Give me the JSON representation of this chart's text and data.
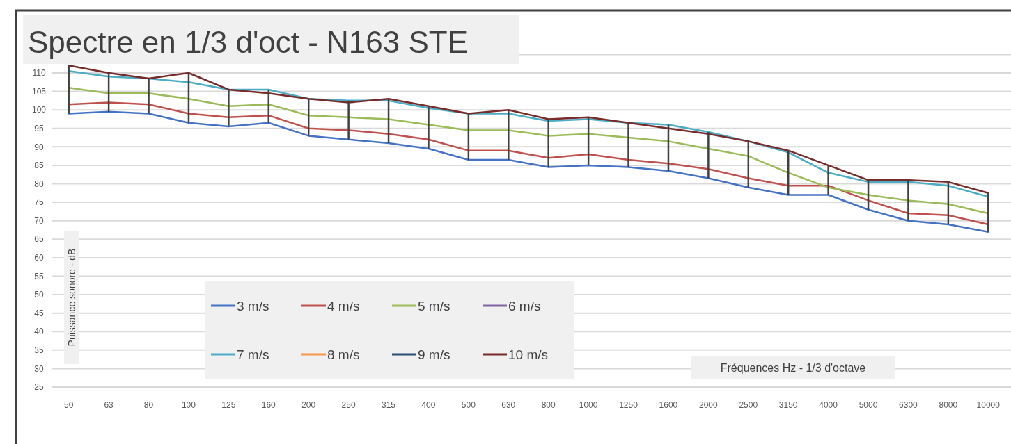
{
  "chart_data": {
    "type": "line",
    "title": "Spectre en 1/3 d'oct - N163 STE",
    "xlabel": "Fréquences Hz - 1/3 d'octave",
    "ylabel": "Puissance sonore - dB",
    "categories": [
      "50",
      "63",
      "80",
      "100",
      "125",
      "160",
      "200",
      "250",
      "315",
      "400",
      "500",
      "630",
      "800",
      "1000",
      "1250",
      "1600",
      "2000",
      "2500",
      "3150",
      "4000",
      "5000",
      "6300",
      "8000",
      "10000"
    ],
    "series": [
      {
        "name": "3 m/s",
        "color": "#4472c4",
        "values": [
          99,
          99.5,
          99,
          96.5,
          95.5,
          96.5,
          93,
          92,
          91,
          89.5,
          86.5,
          86.5,
          84.5,
          85,
          84.5,
          83.5,
          81.5,
          79,
          77,
          77,
          73,
          70,
          69,
          67
        ],
        "errors": [
          [
            99,
            112
          ],
          [
            99.5,
            110
          ],
          [
            99,
            108.5
          ],
          [
            96.5,
            110
          ],
          [
            95.5,
            105.5
          ],
          [
            96.5,
            105.5
          ],
          [
            93,
            103
          ],
          [
            92,
            102.5
          ],
          [
            91,
            103
          ],
          [
            89.5,
            101
          ],
          [
            86.5,
            99
          ],
          [
            86.5,
            100
          ],
          [
            84.5,
            97.5
          ],
          [
            85,
            98
          ],
          [
            84.5,
            96.5
          ],
          [
            83.5,
            96
          ],
          [
            81.5,
            94
          ],
          [
            79,
            91.5
          ],
          [
            77,
            89
          ],
          [
            77,
            85
          ],
          [
            73,
            81
          ],
          [
            70,
            81
          ],
          [
            69,
            80.5
          ],
          [
            67,
            77.5
          ]
        ]
      },
      {
        "name": "4 m/s",
        "color": "#c0504d",
        "values": [
          101.5,
          102,
          101.5,
          99,
          98,
          98.5,
          95,
          94.5,
          93.5,
          92,
          89,
          89,
          87,
          88,
          86.5,
          85.5,
          84,
          81.5,
          79.5,
          79.5,
          75.5,
          72,
          71.5,
          69
        ]
      },
      {
        "name": "5 m/s",
        "color": "#9bbb59",
        "values": [
          106,
          104.5,
          104.5,
          103,
          101,
          101.5,
          98.5,
          98,
          97.5,
          96,
          94.5,
          94.5,
          93,
          93.5,
          92.5,
          91.5,
          89.5,
          87.5,
          83,
          79,
          77,
          75.5,
          74.5,
          72
        ]
      },
      {
        "name": "6 m/s",
        "color": "#8064a2",
        "values": [
          null,
          null,
          null,
          null,
          null,
          null,
          null,
          null,
          null,
          null,
          null,
          null,
          null,
          null,
          null,
          null,
          null,
          null,
          null,
          null,
          null,
          null,
          null,
          null
        ]
      },
      {
        "name": "7 m/s",
        "color": "#4bacc6",
        "values": [
          110.5,
          109,
          108.5,
          107.5,
          105.5,
          105.5,
          103,
          102.5,
          102.5,
          100.5,
          99,
          99,
          97,
          97.5,
          96.5,
          96,
          94,
          91.5,
          88.5,
          83,
          80.5,
          80.5,
          79.5,
          76.5
        ]
      },
      {
        "name": "8 m/s",
        "color": "#f79646",
        "values": [
          null,
          null,
          null,
          null,
          null,
          null,
          null,
          null,
          null,
          null,
          null,
          null,
          null,
          null,
          null,
          null,
          null,
          null,
          null,
          null,
          null,
          null,
          null,
          null
        ]
      },
      {
        "name": "9 m/s",
        "color": "#2c4d75",
        "values": [
          null,
          null,
          null,
          null,
          null,
          null,
          null,
          null,
          null,
          null,
          null,
          null,
          null,
          null,
          null,
          null,
          null,
          null,
          null,
          null,
          null,
          null,
          null,
          null
        ]
      },
      {
        "name": "10 m/s",
        "color": "#772c2a",
        "values": [
          112,
          110,
          108.5,
          110,
          105.5,
          104.5,
          103,
          102,
          103,
          101,
          99,
          100,
          97.5,
          98,
          96.5,
          95,
          93.5,
          91.5,
          89,
          85,
          81,
          81,
          80.5,
          77.5
        ]
      }
    ],
    "ylim": [
      25,
      115
    ],
    "yticks": [
      25,
      30,
      35,
      40,
      45,
      50,
      55,
      60,
      65,
      70,
      75,
      80,
      85,
      90,
      95,
      100,
      105,
      110,
      {
        "value": 115,
        "label": null
      }
    ],
    "grid": "y",
    "legend": "bottom",
    "marker": "none",
    "line_style": "solid"
  }
}
